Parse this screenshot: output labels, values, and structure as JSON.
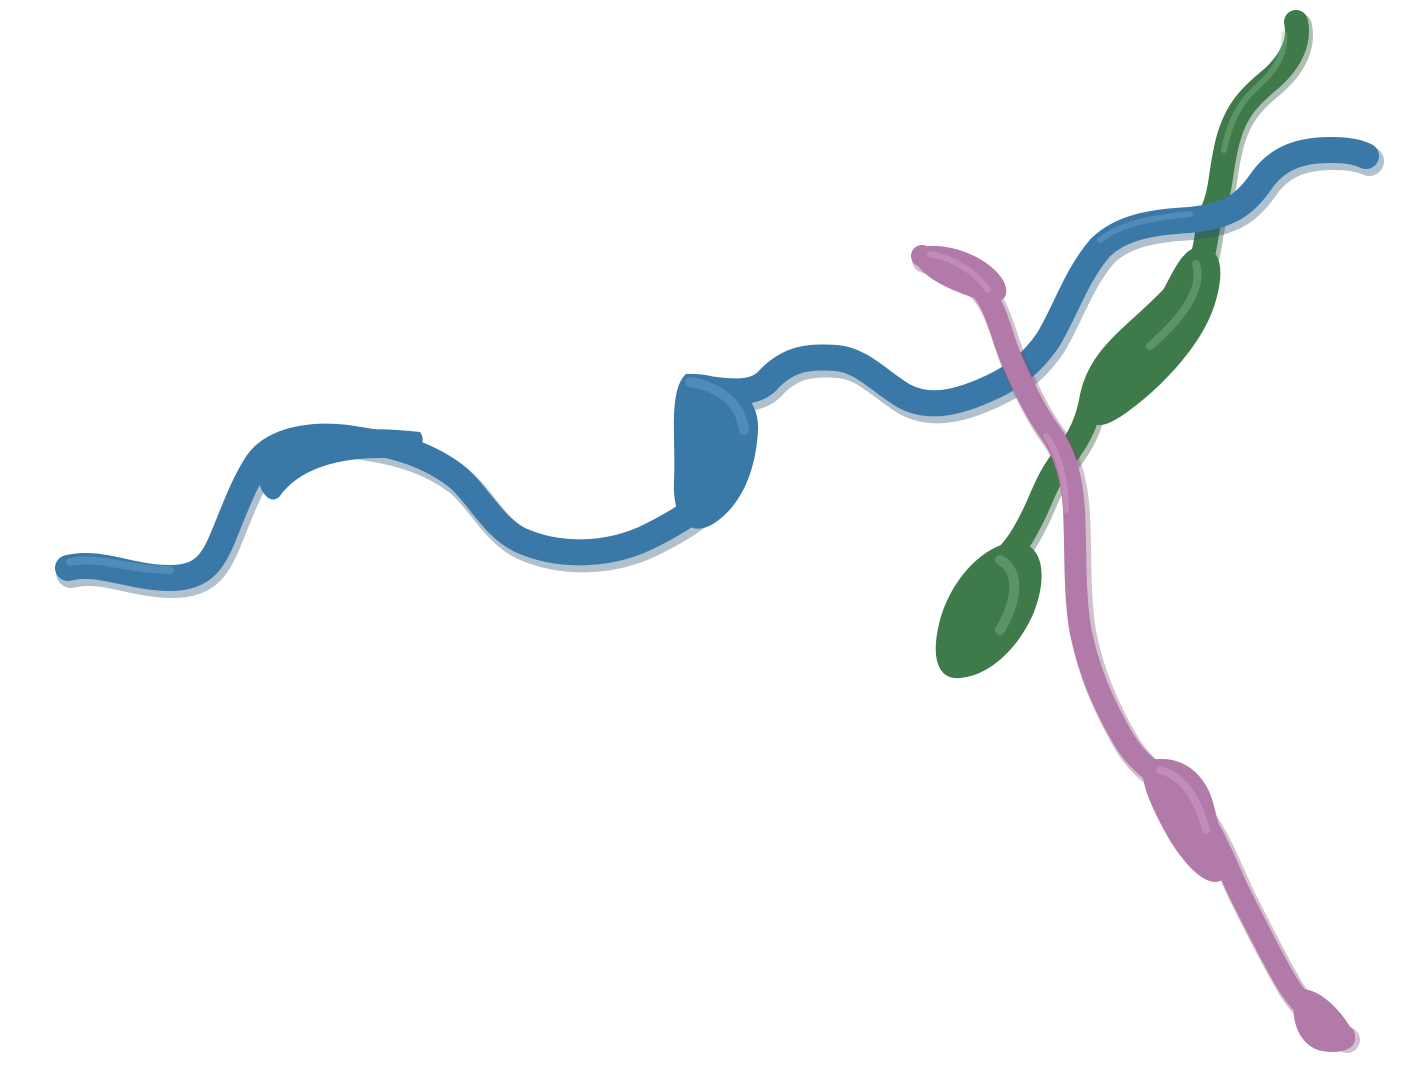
{
  "scene": {
    "background": "#ffffff",
    "segments": [
      {
        "id": "blue",
        "name": "blue-neurite-segment",
        "color": "#3a78a8",
        "shade": "#1e4a70",
        "light": "#7db0d8"
      },
      {
        "id": "green",
        "name": "green-neurite-segment",
        "color": "#3f7a4a",
        "shade": "#1f4527",
        "light": "#8fc79a"
      },
      {
        "id": "pink",
        "name": "pink-neurite-segment",
        "color": "#b27aa8",
        "shade": "#7a4a73",
        "light": "#dcb0d4"
      }
    ]
  }
}
